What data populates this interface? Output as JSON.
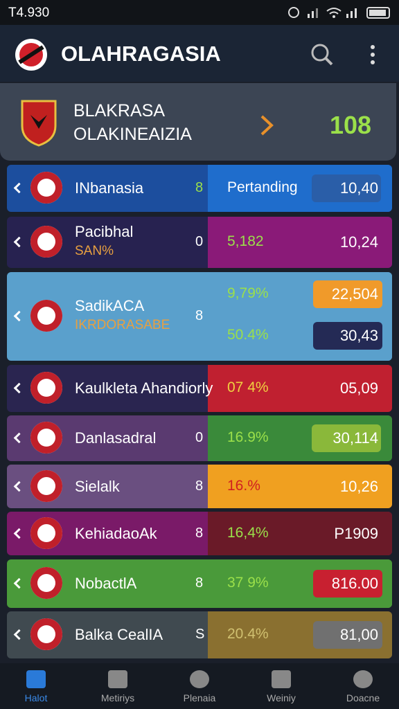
{
  "status_bar": {
    "time": "T4.930"
  },
  "header": {
    "title": "OLAHRAGASIA"
  },
  "featured": {
    "line1": "BLAKRASA",
    "line2": "OLAKINEAIZIA",
    "value": "108"
  },
  "rows": [
    {
      "name": "INbanasia",
      "marker": "8",
      "stats": [
        "Pertanding",
        "10,40"
      ]
    },
    {
      "name": "Pacibhal",
      "subtitle": "SAN%",
      "marker": "0",
      "stats": [
        "5,182",
        "10,24"
      ]
    },
    {
      "name": "SadikACA",
      "subtitle": "IKRDORASABE",
      "marker": "8",
      "stats": [
        "9,79%",
        "22,504",
        "50.4%",
        "30,43"
      ]
    },
    {
      "name": "Kaulkleta Ahandiorly",
      "stats": [
        "07 4%",
        "05,09"
      ]
    },
    {
      "name": "Danlasadral",
      "marker": "0",
      "stats": [
        "16.9%",
        "30,114"
      ]
    },
    {
      "name": "Sielalk",
      "marker": "8",
      "stats": [
        "16.%",
        "10,26"
      ]
    },
    {
      "name": "KehiadaoAk",
      "marker": "8",
      "stats": [
        "16,4%",
        "P1909"
      ]
    },
    {
      "name": "NobactlA",
      "marker": "8",
      "stats": [
        "37 9%",
        "816.00"
      ]
    },
    {
      "name": "Balka CealIA",
      "marker": "S",
      "stats": [
        "20.4%",
        "81,00"
      ]
    }
  ],
  "nav": [
    "Halot",
    "Metiriys",
    "Plenaia",
    "Weiniy",
    "Doacne"
  ]
}
